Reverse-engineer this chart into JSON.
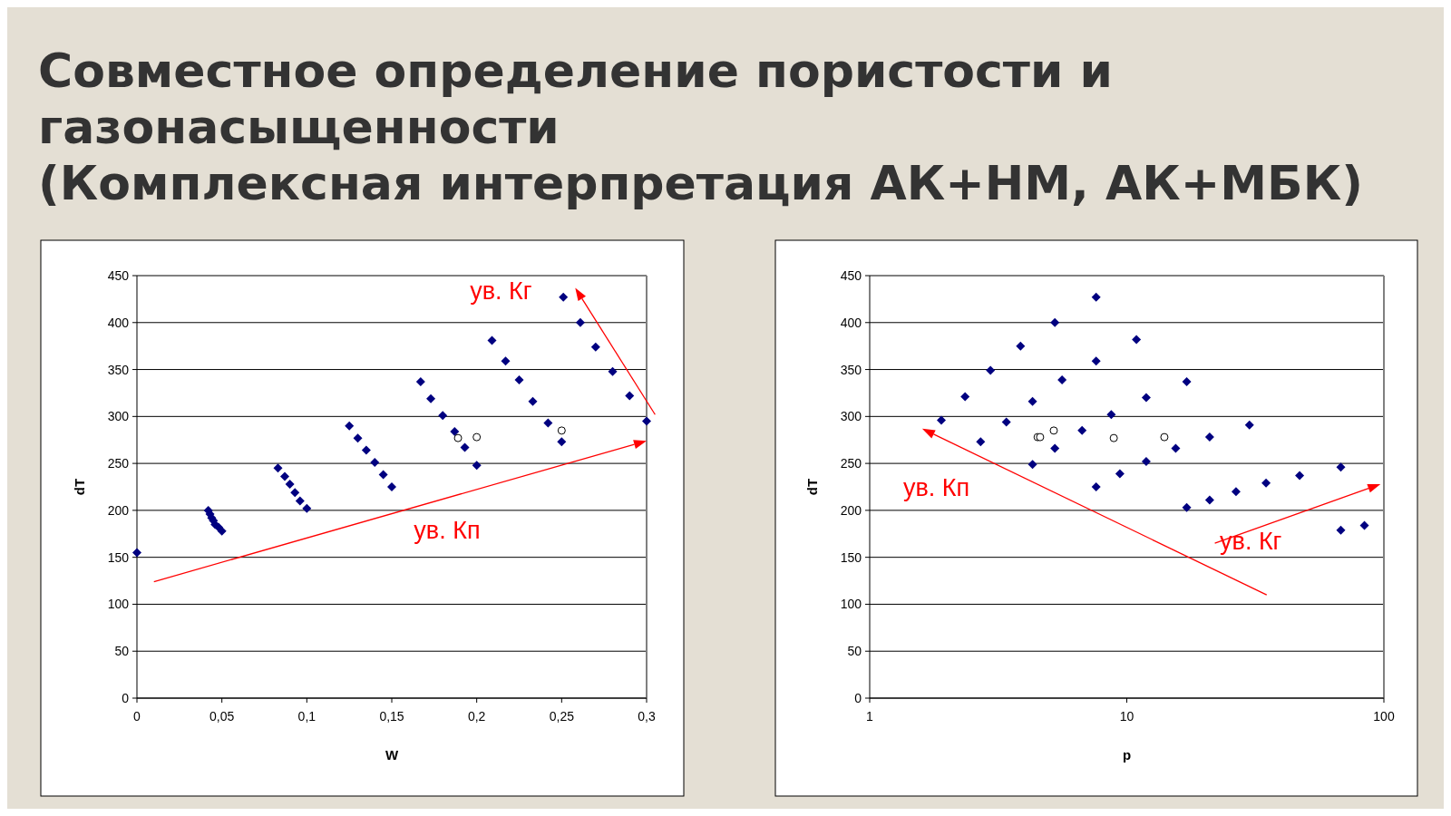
{
  "chart_data": [
    {
      "type": "scatter",
      "title": "Совместное определение пористости и\nгазонасыщенности\n(Комплексная интерпретация АК+НМ, АК+МБК)",
      "xlabel": "W",
      "ylabel": "dT",
      "xlim": [
        0,
        0.3
      ],
      "ylim": [
        0,
        450
      ],
      "xticks": [
        0,
        {
          "value": 0.05,
          "label": "0,05"
        },
        {
          "value": 0.1,
          "label": "0,1"
        },
        {
          "value": 0.15,
          "label": "0,15"
        },
        {
          "value": 0.2,
          "label": "0,2"
        },
        {
          "value": 0.25,
          "label": "0,25"
        },
        {
          "value": 0.3,
          "label": "0,3"
        }
      ],
      "yticks": [
        0,
        50,
        100,
        150,
        200,
        250,
        300,
        350,
        400,
        450
      ],
      "grid": "y",
      "annotations": [
        "ув. Кг",
        "ув. Кп"
      ],
      "series": [
        {
          "color": "#000080",
          "marker": "diamond",
          "x": [
            0,
            0.042,
            0.043,
            0.044,
            0.045,
            0.046,
            0.048,
            0.05,
            0.083,
            0.087,
            0.09,
            0.093,
            0.096,
            0.1,
            0.125,
            0.13,
            0.135,
            0.14,
            0.145,
            0.15,
            0.167,
            0.173,
            0.18,
            0.187,
            0.193,
            0.2,
            0.209,
            0.217,
            0.225,
            0.233,
            0.242,
            0.25,
            0.251,
            0.261,
            0.27,
            0.28,
            0.29,
            0.3
          ],
          "values": [
            155,
            200,
            196,
            192,
            189,
            185,
            182,
            178,
            245,
            236,
            228,
            219,
            210,
            202,
            290,
            277,
            264,
            251,
            238,
            225,
            337,
            319,
            301,
            284,
            267,
            248,
            381,
            359,
            339,
            316,
            293,
            273,
            427,
            400,
            374,
            348,
            322,
            295
          ]
        },
        {
          "color": "#000000",
          "marker": "circle",
          "x": [
            0.189,
            0.2,
            0.25
          ],
          "values": [
            277,
            278,
            285
          ]
        }
      ]
    },
    {
      "type": "scatter",
      "xlabel": "p",
      "ylabel": "dT",
      "log": "x",
      "xlim": [
        1,
        100
      ],
      "ylim": [
        0,
        450
      ],
      "xticks": [
        1,
        10,
        100
      ],
      "yticks": [
        0,
        50,
        100,
        150,
        200,
        250,
        300,
        350,
        400,
        450
      ],
      "grid": "y",
      "annotations": [
        "ув. Кп",
        "ув. Кг"
      ],
      "series": [
        {
          "color": "#000080",
          "marker": "diamond",
          "x": [
            1.9,
            2.35,
            2.95,
            3.86,
            5.25,
            7.6,
            10.9,
            7.6,
            5.6,
            4.3,
            3.4,
            11.9,
            17.1,
            8.7,
            6.7,
            30,
            21,
            2.7,
            5.25,
            4.3,
            15.5,
            11.9,
            9.4,
            7.6,
            17.1,
            21,
            26.6,
            34.8,
            47,
            68,
            68,
            84
          ],
          "values": [
            296,
            321,
            349,
            375,
            400,
            427,
            382,
            359,
            339,
            316,
            294,
            320,
            337,
            302,
            285,
            291,
            278,
            273,
            266,
            249,
            266,
            252,
            239,
            225,
            203,
            211,
            220,
            229,
            237,
            246,
            179,
            184
          ]
        },
        {
          "color": "#000000",
          "marker": "circle",
          "x": [
            4.5,
            4.6,
            5.2,
            8.9,
            14
          ],
          "values": [
            278,
            278,
            285,
            277,
            278
          ]
        }
      ]
    }
  ]
}
